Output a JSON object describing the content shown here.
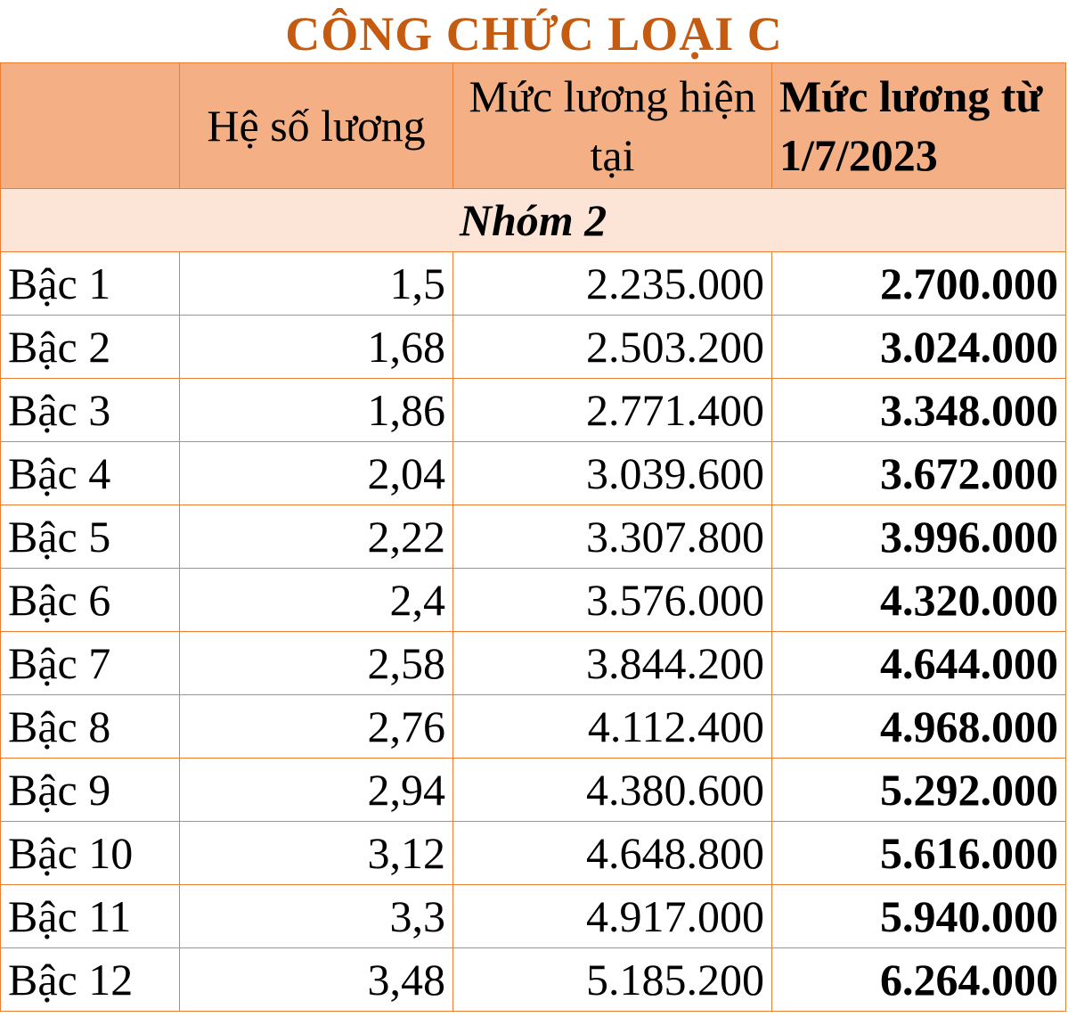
{
  "title": "CÔNG CHỨC LOẠI C",
  "headers": [
    "",
    "Hệ số lương",
    "Mức lương hiện tại",
    "Mức lương từ 1/7/2023"
  ],
  "group": "Nhóm 2",
  "rows": [
    [
      "Bậc 1",
      "1,5",
      "2.235.000",
      "2.700.000"
    ],
    [
      "Bậc 2",
      "1,68",
      "2.503.200",
      "3.024.000"
    ],
    [
      "Bậc 3",
      "1,86",
      "2.771.400",
      "3.348.000"
    ],
    [
      "Bậc 4",
      "2,04",
      "3.039.600",
      "3.672.000"
    ],
    [
      "Bậc 5",
      "2,22",
      "3.307.800",
      "3.996.000"
    ],
    [
      "Bậc 6",
      "2,4",
      "3.576.000",
      "4.320.000"
    ],
    [
      "Bậc 7",
      "2,58",
      "3.844.200",
      "4.644.000"
    ],
    [
      "Bậc 8",
      "2,76",
      "4.112.400",
      "4.968.000"
    ],
    [
      "Bậc 9",
      "2,94",
      "4.380.600",
      "5.292.000"
    ],
    [
      "Bậc 10",
      "3,12",
      "4.648.800",
      "5.616.000"
    ],
    [
      "Bậc 11",
      "3,3",
      "4.917.000",
      "5.940.000"
    ],
    [
      "Bậc 12",
      "3,48",
      "5.185.200",
      "6.264.000"
    ]
  ]
}
